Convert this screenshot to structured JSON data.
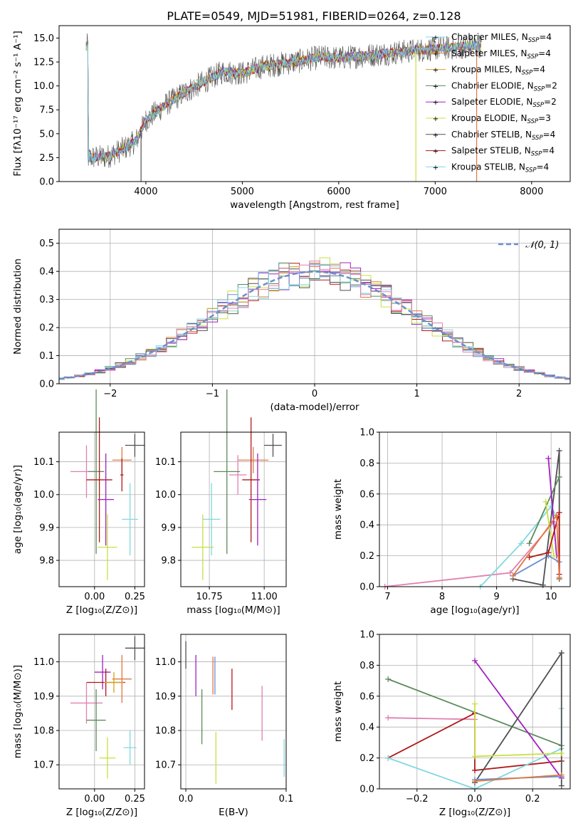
{
  "figure": {
    "title": "PLATE=0549, MJD=51981, FIBERID=0264, z=0.128",
    "series_colors": [
      "#6a8ed0",
      "#e07840",
      "#d4a017",
      "#5c8a5c",
      "#a020c0",
      "#c8e040",
      "#505050",
      "#b01818",
      "#80d8e0",
      "#e080b0"
    ]
  },
  "chart_data": [
    {
      "id": "spectrum",
      "type": "line",
      "xlabel": "wavelength [Angstrom, rest frame]",
      "ylabel": "Flux [fλ10⁻¹⁷ erg cm⁻² s⁻¹ A⁻¹]",
      "xlim": [
        3100,
        8400
      ],
      "ylim": [
        0,
        16.3
      ],
      "xticks": [
        "4000",
        "5000",
        "6000",
        "7000",
        "8000"
      ],
      "yticks": [
        "0.0",
        "2.5",
        "5.0",
        "7.5",
        "10.0",
        "12.5",
        "15.0"
      ],
      "grid": false,
      "legend_position": "right",
      "legend": [
        {
          "label": "Chabrier MILES, N",
          "sub": "SSP",
          "suffix": "=4",
          "color": "#80d8e0",
          "marker": "+"
        },
        {
          "label": "Salpeter MILES, N",
          "sub": "SSP",
          "suffix": "=4",
          "color": "#e07840",
          "marker": "+"
        },
        {
          "label": "Kroupa MILES, N",
          "sub": "SSP",
          "suffix": "=4",
          "color": "#d4a017",
          "marker": "+"
        },
        {
          "label": "Chabrier ELODIE, N",
          "sub": "SSP",
          "suffix": "=2",
          "color": "#5c8a5c",
          "marker": "+"
        },
        {
          "label": "Salpeter ELODIE, N",
          "sub": "SSP",
          "suffix": "=2",
          "color": "#a020c0",
          "marker": "+"
        },
        {
          "label": "Kroupa ELODIE, N",
          "sub": "SSP",
          "suffix": "=3",
          "color": "#c8e040",
          "marker": "+"
        },
        {
          "label": "Chabrier STELIB, N",
          "sub": "SSP",
          "suffix": "=4",
          "color": "#505050",
          "marker": "+"
        },
        {
          "label": "Salpeter STELIB, N",
          "sub": "SSP",
          "suffix": "=4",
          "color": "#b01818",
          "marker": "+"
        },
        {
          "label": "Kroupa STELIB, N",
          "sub": "SSP",
          "suffix": "=4",
          "color": "#80d8e0",
          "marker": "+"
        }
      ],
      "envelope": [
        [
          3400,
          2.5
        ],
        [
          3600,
          2.6
        ],
        [
          3800,
          3.6
        ],
        [
          3900,
          4.3
        ],
        [
          4000,
          6.4
        ],
        [
          4200,
          8.0
        ],
        [
          4400,
          9.3
        ],
        [
          4600,
          10.4
        ],
        [
          4800,
          11.5
        ],
        [
          5000,
          11.3
        ],
        [
          5200,
          12.0
        ],
        [
          5400,
          12.3
        ],
        [
          5600,
          12.6
        ],
        [
          5800,
          13.0
        ],
        [
          6000,
          12.9
        ],
        [
          6200,
          13.1
        ],
        [
          6400,
          13.3
        ],
        [
          6600,
          13.5
        ],
        [
          6800,
          13.7
        ],
        [
          7000,
          13.9
        ],
        [
          7200,
          14.0
        ],
        [
          7400,
          14.2
        ]
      ],
      "spikes": [
        [
          3950,
          0
        ],
        [
          6800,
          0
        ],
        [
          7430,
          0
        ]
      ]
    },
    {
      "id": "residuals",
      "type": "histogram",
      "xlabel": "(data-model)/error",
      "ylabel": "Normed distribution",
      "xlim": [
        -2.5,
        2.5
      ],
      "ylim": [
        0,
        0.55
      ],
      "xticks": [
        "−2",
        "−1",
        "0",
        "1",
        "2"
      ],
      "xtick_values": [
        -2,
        -1,
        0,
        1,
        2
      ],
      "yticks": [
        "0.0",
        "0.1",
        "0.2",
        "0.3",
        "0.4",
        "0.5"
      ],
      "ytick_values": [
        0,
        0.1,
        0.2,
        0.3,
        0.4,
        0.5
      ],
      "grid": true,
      "bin_width": 0.1,
      "legend": [
        {
          "label": "𝒩(0, 1)",
          "color": "#6a8ed0",
          "style": "dashed"
        }
      ],
      "legend_position": "top-right"
    },
    {
      "id": "z-age",
      "type": "scatter",
      "xlabel": "Z [log₁₀(Z/Z⊙)]",
      "ylabel": "age  [log₁₀(age/yr)]",
      "xlim": [
        -0.22,
        0.31
      ],
      "ylim": [
        9.72,
        10.19
      ],
      "xticks": [
        "0.00",
        "0.25"
      ],
      "xtick_values": [
        0,
        0.25
      ],
      "yticks": [
        "9.8",
        "9.9",
        "10.0",
        "10.1"
      ],
      "ytick_values": [
        9.8,
        9.9,
        10.0,
        10.1
      ],
      "grid": true,
      "points": [
        {
          "x": 0.25,
          "y": 10.15,
          "xe": 0.06,
          "ye": 0.035,
          "c": "#505050"
        },
        {
          "x": 0.17,
          "y": 10.105,
          "xe": 0.06,
          "ye": 0.04,
          "c": "#e07840"
        },
        {
          "x": 0.17,
          "y": 10.06,
          "xe": 0.01,
          "ye": 0.05,
          "c": "#b01818"
        },
        {
          "x": -0.05,
          "y": 10.07,
          "xe": 0.1,
          "ye": 0.08,
          "c": "#e080b0"
        },
        {
          "x": 0.01,
          "y": 10.07,
          "xe": 0.05,
          "ye": 0.25,
          "c": "#5c8a5c"
        },
        {
          "x": 0.03,
          "y": 10.045,
          "xe": 0.08,
          "ye": 0.19,
          "c": "#b01818"
        },
        {
          "x": 0.07,
          "y": 9.985,
          "xe": 0.05,
          "ye": 0.14,
          "c": "#a020c0"
        },
        {
          "x": 0.08,
          "y": 9.84,
          "xe": 0.06,
          "ye": 0.1,
          "c": "#c8e040"
        },
        {
          "x": 0.22,
          "y": 9.925,
          "xe": 0.05,
          "ye": 0.11,
          "c": "#80d8e0"
        }
      ]
    },
    {
      "id": "mass-age",
      "type": "scatter",
      "xlabel": "mass [log₁₀(M/M⊙)]",
      "ylabel": "",
      "xlim": [
        10.62,
        11.1
      ],
      "ylim": [
        9.72,
        10.19
      ],
      "xticks": [
        "10.75",
        "11.00"
      ],
      "xtick_values": [
        10.75,
        11.0
      ],
      "yticks": [
        "9.8",
        "9.9",
        "10.0",
        "10.1"
      ],
      "ytick_values": [
        9.8,
        9.9,
        10.0,
        10.1
      ],
      "grid": true,
      "points": [
        {
          "x": 11.04,
          "y": 10.15,
          "xe": 0.04,
          "ye": 0.035,
          "c": "#505050"
        },
        {
          "x": 10.95,
          "y": 10.105,
          "xe": 0.07,
          "ye": 0.04,
          "c": "#e07840"
        },
        {
          "x": 10.88,
          "y": 10.06,
          "xe": 0.04,
          "ye": 0.06,
          "c": "#e080b0"
        },
        {
          "x": 10.83,
          "y": 10.07,
          "xe": 0.06,
          "ye": 0.25,
          "c": "#5c8a5c"
        },
        {
          "x": 10.94,
          "y": 10.045,
          "xe": 0.04,
          "ye": 0.19,
          "c": "#b01818"
        },
        {
          "x": 10.97,
          "y": 9.985,
          "xe": 0.04,
          "ye": 0.14,
          "c": "#a020c0"
        },
        {
          "x": 10.72,
          "y": 9.84,
          "xe": 0.05,
          "ye": 0.1,
          "c": "#c8e040"
        },
        {
          "x": 10.76,
          "y": 9.925,
          "xe": 0.04,
          "ye": 0.11,
          "c": "#80d8e0"
        }
      ]
    },
    {
      "id": "age-weight",
      "type": "line",
      "xlabel": "age  [log₁₀(age/yr)]",
      "ylabel": "mass weight",
      "xlim": [
        6.85,
        10.35
      ],
      "ylim": [
        0,
        1
      ],
      "xticks": [
        "7",
        "8",
        "9",
        "10"
      ],
      "xtick_values": [
        7,
        8,
        9,
        10
      ],
      "yticks": [
        "0.0",
        "0.2",
        "0.4",
        "0.6",
        "0.8",
        "1.0"
      ],
      "ytick_values": [
        0,
        0.2,
        0.4,
        0.6,
        0.8,
        1.0
      ],
      "grid": true,
      "series": [
        {
          "c": "#e080b0",
          "pts": [
            [
              6.95,
              0
            ],
            [
              9.25,
              0.09
            ],
            [
              10.05,
              0.42
            ]
          ]
        },
        {
          "c": "#80d8e0",
          "pts": [
            [
              8.7,
              0
            ],
            [
              9.45,
              0.28
            ],
            [
              10.0,
              0.52
            ],
            [
              10.1,
              0.45
            ]
          ]
        },
        {
          "c": "#6a8ed0",
          "pts": [
            [
              9.3,
              0.07
            ],
            [
              9.95,
              0.2
            ],
            [
              10.15,
              0.16
            ]
          ]
        },
        {
          "c": "#505050",
          "pts": [
            [
              9.3,
              0.05
            ],
            [
              9.85,
              0.01
            ],
            [
              10.15,
              0.88
            ],
            [
              10.15,
              0.05
            ]
          ]
        },
        {
          "c": "#5c8a5c",
          "pts": [
            [
              9.6,
              0.28
            ],
            [
              10.15,
              0.71
            ]
          ]
        },
        {
          "c": "#a020c0",
          "pts": [
            [
              9.95,
              0.83
            ],
            [
              10.1,
              0.2
            ]
          ]
        },
        {
          "c": "#c8e040",
          "pts": [
            [
              9.9,
              0.55
            ],
            [
              10.05,
              0.2
            ]
          ]
        },
        {
          "c": "#b01818",
          "pts": [
            [
              9.6,
              0.19
            ],
            [
              9.95,
              0.22
            ],
            [
              10.15,
              0.48
            ],
            [
              10.15,
              0.08
            ]
          ]
        },
        {
          "c": "#e07840",
          "pts": [
            [
              9.3,
              0.07
            ],
            [
              10.1,
              0.46
            ],
            [
              10.15,
              0.06
            ]
          ]
        }
      ]
    },
    {
      "id": "z-mass",
      "type": "scatter",
      "xlabel": "Z [log₁₀(Z/Z⊙)]",
      "ylabel": "mass [log₁₀(M/M⊙)]",
      "xlim": [
        -0.22,
        0.31
      ],
      "ylim": [
        10.63,
        11.08
      ],
      "xticks": [
        "0.00",
        "0.25"
      ],
      "xtick_values": [
        0,
        0.25
      ],
      "yticks": [
        "10.7",
        "10.8",
        "10.9",
        "11.0"
      ],
      "ytick_values": [
        10.7,
        10.8,
        10.9,
        11.0
      ],
      "grid": true,
      "points": [
        {
          "x": 0.25,
          "y": 11.04,
          "xe": 0.06,
          "ye": 0.035,
          "c": "#505050"
        },
        {
          "x": 0.17,
          "y": 10.95,
          "xe": 0.06,
          "ye": 0.07,
          "c": "#e07840"
        },
        {
          "x": 0.05,
          "y": 10.97,
          "xe": 0.05,
          "ye": 0.05,
          "c": "#a020c0"
        },
        {
          "x": 0.07,
          "y": 10.94,
          "xe": 0.12,
          "ye": 0.04,
          "c": "#b01818"
        },
        {
          "x": -0.05,
          "y": 10.88,
          "xe": 0.1,
          "ye": 0.06,
          "c": "#e080b0"
        },
        {
          "x": 0.01,
          "y": 10.83,
          "xe": 0.06,
          "ye": 0.09,
          "c": "#5c8a5c"
        },
        {
          "x": 0.08,
          "y": 10.72,
          "xe": 0.05,
          "ye": 0.06,
          "c": "#c8e040"
        },
        {
          "x": 0.22,
          "y": 10.75,
          "xe": 0.04,
          "ye": 0.05,
          "c": "#80d8e0"
        },
        {
          "x": 0.12,
          "y": 10.94,
          "xe": 0.06,
          "ye": 0.03,
          "c": "#d4a017"
        }
      ]
    },
    {
      "id": "ebv-mass",
      "type": "scatter",
      "xlabel": "E(B-V)",
      "ylabel": "",
      "xlim": [
        -0.005,
        0.1
      ],
      "ylim": [
        10.63,
        11.08
      ],
      "xticks": [
        "0.0",
        "0.1"
      ],
      "xtick_values": [
        0,
        0.1
      ],
      "yticks": [
        "10.7",
        "10.8",
        "10.9",
        "11.0"
      ],
      "ytick_values": [
        10.7,
        10.8,
        10.9,
        11.0
      ],
      "grid": true,
      "points": [
        {
          "x": 0.0,
          "y": 11.02,
          "xe": 0,
          "ye": 0.04,
          "c": "#505050"
        },
        {
          "x": 0.01,
          "y": 10.96,
          "xe": 0,
          "ye": 0.06,
          "c": "#a020c0"
        },
        {
          "x": 0.016,
          "y": 10.84,
          "xe": 0,
          "ye": 0.08,
          "c": "#5c8a5c"
        },
        {
          "x": 0.027,
          "y": 10.96,
          "xe": 0,
          "ye": 0.055,
          "c": "#e07840"
        },
        {
          "x": 0.029,
          "y": 10.96,
          "xe": 0,
          "ye": 0.055,
          "c": "#6a8ed0"
        },
        {
          "x": 0.03,
          "y": 10.72,
          "xe": 0,
          "ye": 0.075,
          "c": "#c8e040"
        },
        {
          "x": 0.046,
          "y": 10.92,
          "xe": 0,
          "ye": 0.06,
          "c": "#b01818"
        },
        {
          "x": 0.076,
          "y": 10.85,
          "xe": 0,
          "ye": 0.08,
          "c": "#e080b0"
        },
        {
          "x": 0.098,
          "y": 10.72,
          "xe": 0,
          "ye": 0.055,
          "c": "#80d8e0"
        }
      ]
    },
    {
      "id": "z-weight",
      "type": "line",
      "xlabel": "Z [log₁₀(Z/Z⊙)]",
      "ylabel": "mass weight",
      "xlim": [
        -0.33,
        0.33
      ],
      "ylim": [
        0,
        1
      ],
      "xticks": [
        "−0.2",
        "0.0",
        "0.2"
      ],
      "xtick_values": [
        -0.2,
        0,
        0.2
      ],
      "yticks": [
        "0.0",
        "0.2",
        "0.4",
        "0.6",
        "0.8",
        "1.0"
      ],
      "ytick_values": [
        0,
        0.2,
        0.4,
        0.6,
        0.8,
        1.0
      ],
      "grid": true,
      "series": [
        {
          "c": "#5c8a5c",
          "pts": [
            [
              -0.3,
              0.71
            ],
            [
              0.3,
              0.28
            ]
          ]
        },
        {
          "c": "#e080b0",
          "pts": [
            [
              -0.3,
              0.46
            ],
            [
              0,
              0.45
            ]
          ]
        },
        {
          "c": "#b01818",
          "pts": [
            [
              -0.3,
              0.2
            ],
            [
              0,
              0.49
            ],
            [
              0,
              0.12
            ],
            [
              0.3,
              0.18
            ]
          ]
        },
        {
          "c": "#80d8e0",
          "pts": [
            [
              -0.3,
              0.2
            ],
            [
              0,
              0
            ],
            [
              0.3,
              0.26
            ],
            [
              0.3,
              0.52
            ]
          ]
        },
        {
          "c": "#a020c0",
          "pts": [
            [
              0,
              0.83
            ],
            [
              0.3,
              0.07
            ]
          ]
        },
        {
          "c": "#505050",
          "pts": [
            [
              0,
              0.04
            ],
            [
              0.3,
              0.88
            ],
            [
              0.3,
              0.02
            ]
          ]
        },
        {
          "c": "#c8e040",
          "pts": [
            [
              0,
              0.55
            ],
            [
              0,
              0.21
            ],
            [
              0.3,
              0.23
            ]
          ]
        },
        {
          "c": "#6a8ed0",
          "pts": [
            [
              0,
              0.06
            ],
            [
              0.3,
              0.08
            ]
          ]
        },
        {
          "c": "#e07840",
          "pts": [
            [
              0,
              0.05
            ],
            [
              0.3,
              0.09
            ]
          ]
        }
      ]
    }
  ]
}
